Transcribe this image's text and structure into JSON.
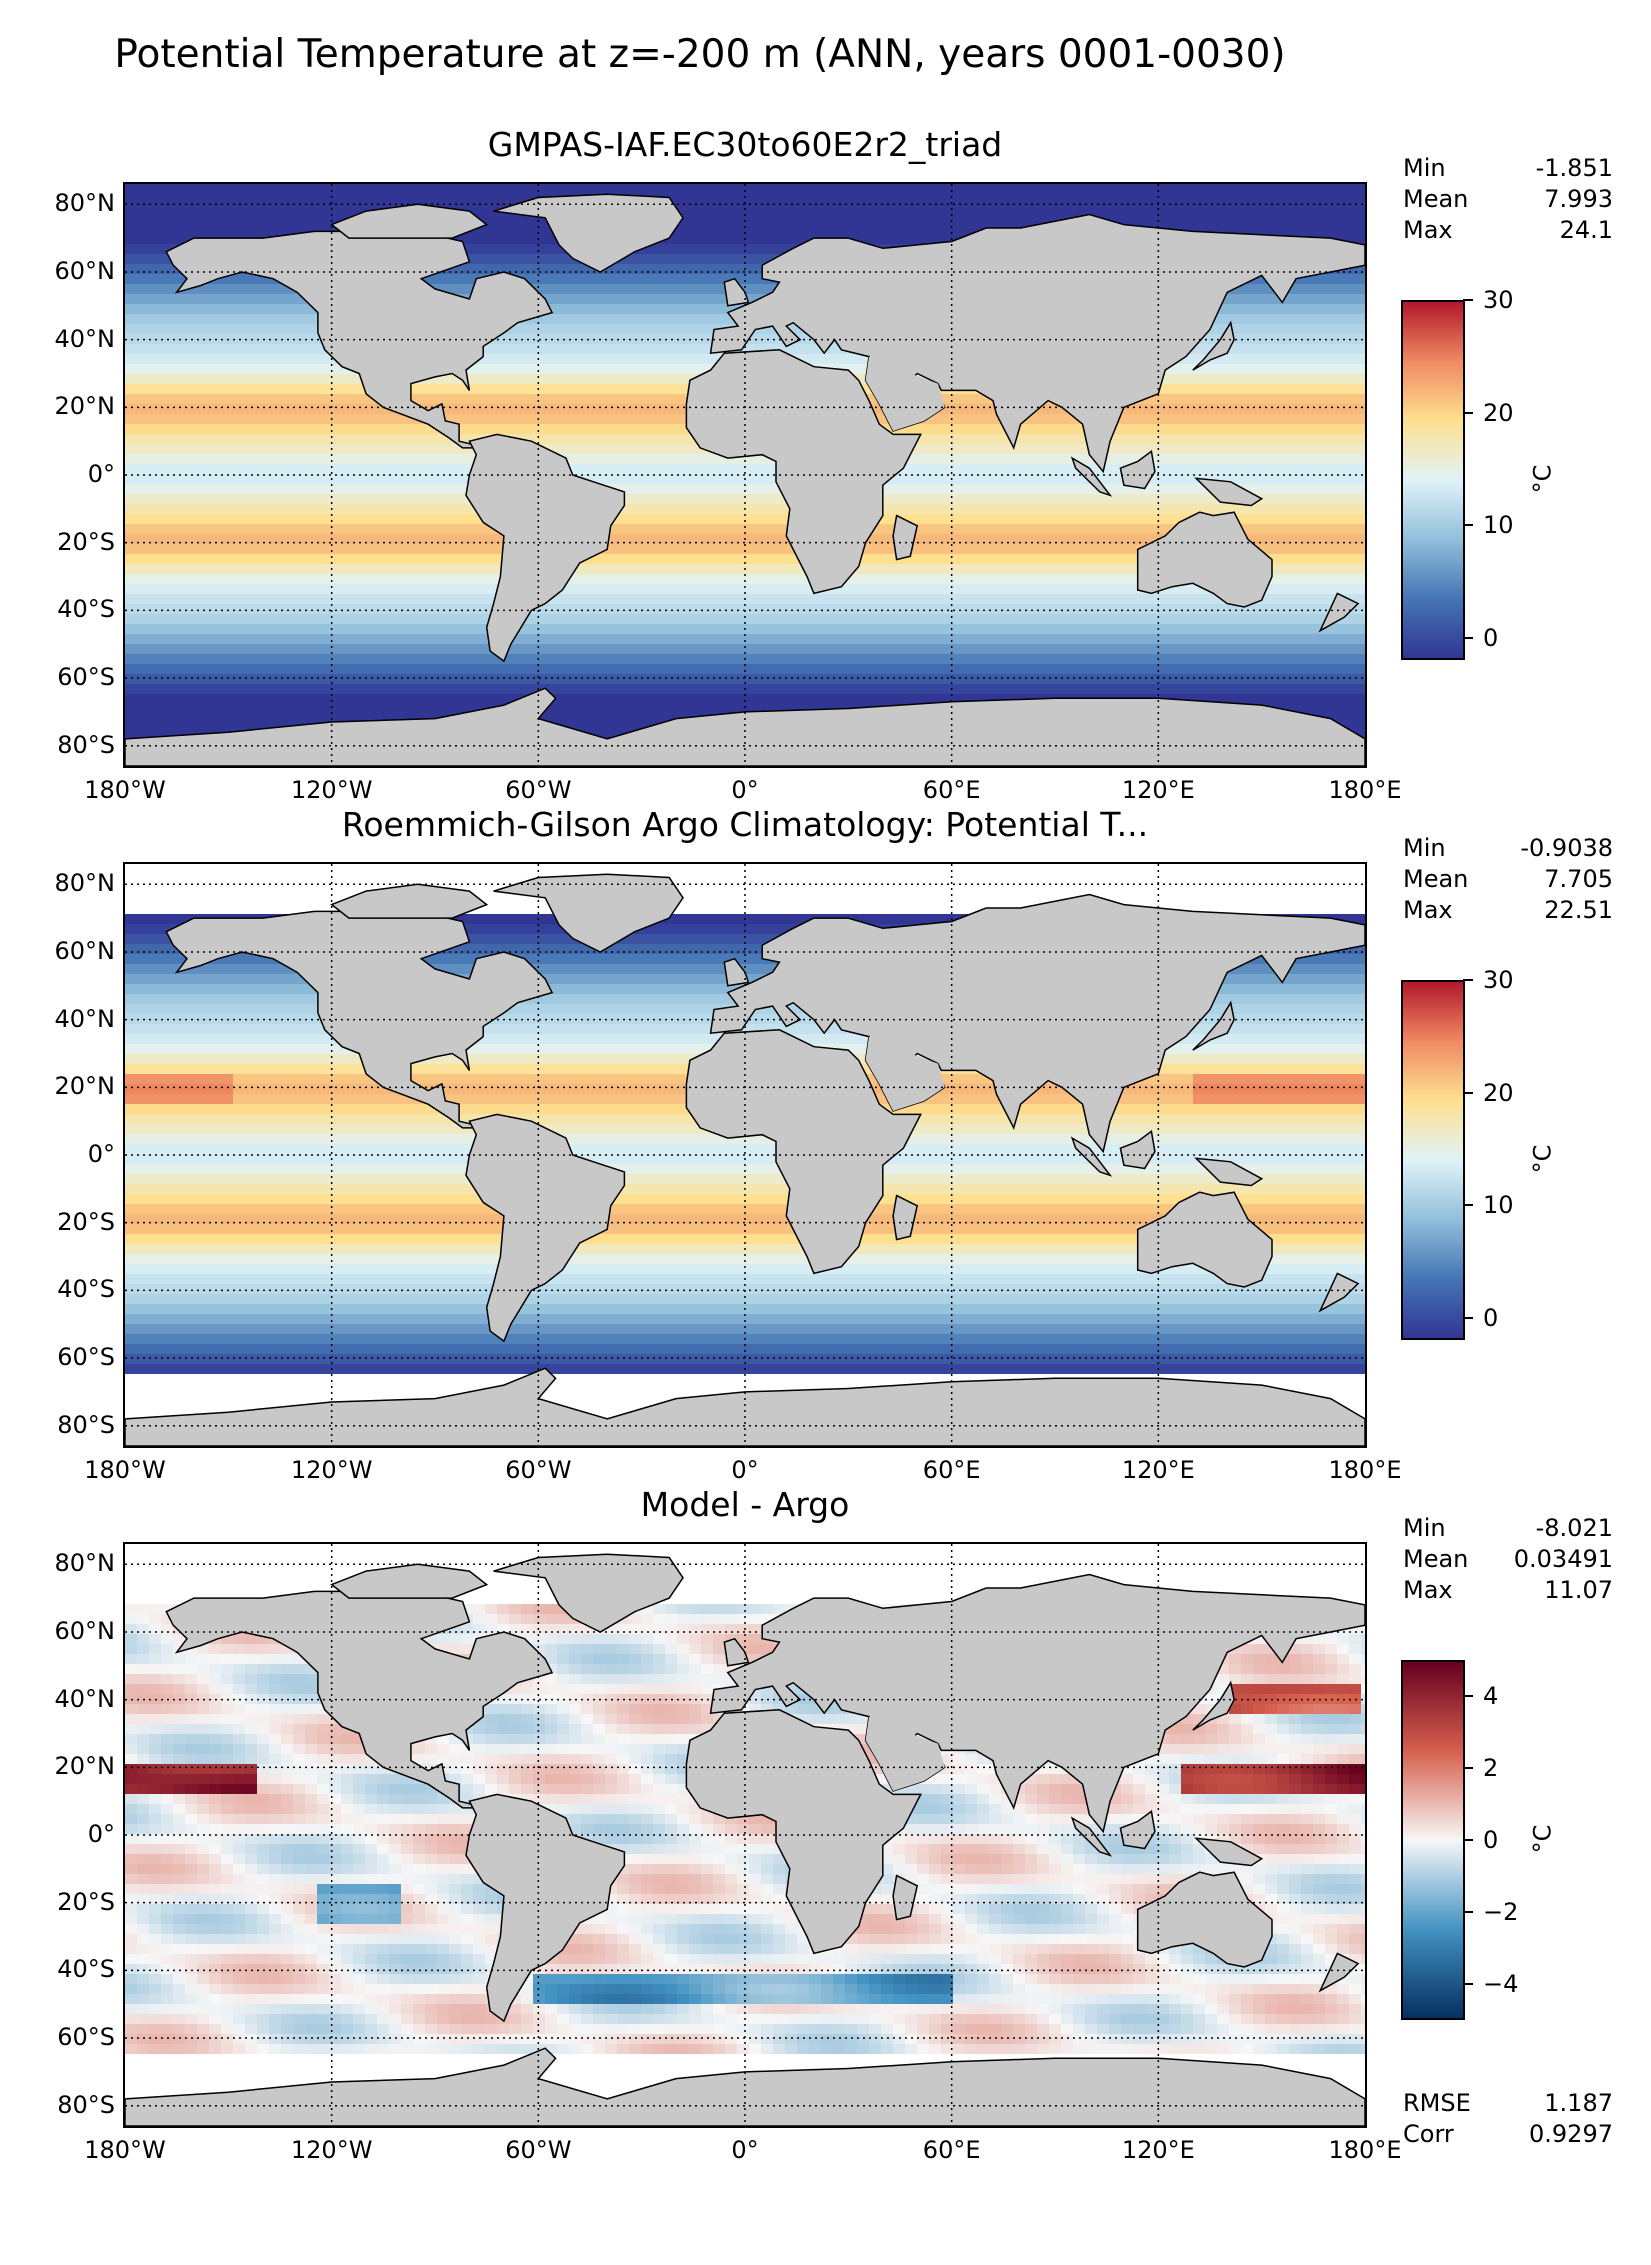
{
  "figure": {
    "title": "Potential Temperature at z=-200 m (ANN, years 0001-0030)"
  },
  "map": {
    "lat_labels": [
      "80°N",
      "60°N",
      "40°N",
      "20°N",
      "0°",
      "20°S",
      "40°S",
      "60°S",
      "80°S"
    ],
    "lon_labels": [
      "180°W",
      "120°W",
      "60°W",
      "0°",
      "60°E",
      "120°E",
      "180°E"
    ],
    "land_color": "#c8c8c8",
    "missing_color": "#ffffff",
    "gridline_style": "dotted"
  },
  "panels": [
    {
      "title": "GMPAS-IAF.EC30to60E2r2_triad",
      "stats": [
        {
          "label": "Min",
          "value": "-1.851"
        },
        {
          "label": "Mean",
          "value": "7.993"
        },
        {
          "label": "Max",
          "value": "24.1"
        }
      ],
      "colorbar": {
        "ticks": [
          "30",
          "20",
          "10",
          "0"
        ],
        "unit": "°C",
        "range": [
          -2,
          30
        ],
        "colors": [
          "#b2182b",
          "#ef8a62",
          "#fee090",
          "#e0f3f8",
          "#91bfdb",
          "#4575b4",
          "#313695"
        ]
      },
      "extra_stats": []
    },
    {
      "title": "Roemmich-Gilson Argo Climatology: Potential T...",
      "stats": [
        {
          "label": "Min",
          "value": "-0.9038"
        },
        {
          "label": "Mean",
          "value": "7.705"
        },
        {
          "label": "Max",
          "value": "22.51"
        }
      ],
      "colorbar": {
        "ticks": [
          "30",
          "20",
          "10",
          "0"
        ],
        "unit": "°C",
        "range": [
          -2,
          30
        ],
        "colors": [
          "#b2182b",
          "#ef8a62",
          "#fee090",
          "#e0f3f8",
          "#91bfdb",
          "#4575b4",
          "#313695"
        ]
      },
      "extra_stats": []
    },
    {
      "title": "Model - Argo",
      "stats": [
        {
          "label": "Min",
          "value": "-8.021"
        },
        {
          "label": "Mean",
          "value": "0.03491"
        },
        {
          "label": "Max",
          "value": "11.07"
        }
      ],
      "colorbar": {
        "ticks": [
          "4",
          "2",
          "0",
          "−2",
          "−4"
        ],
        "unit": "°C",
        "range": [
          -5,
          5
        ],
        "colors": [
          "#67001f",
          "#d6604d",
          "#f7f7f7",
          "#4393c3",
          "#053061"
        ]
      },
      "extra_stats": [
        {
          "label": "RMSE",
          "value": "1.187"
        },
        {
          "label": "Corr",
          "value": "0.9297"
        }
      ]
    }
  ]
}
